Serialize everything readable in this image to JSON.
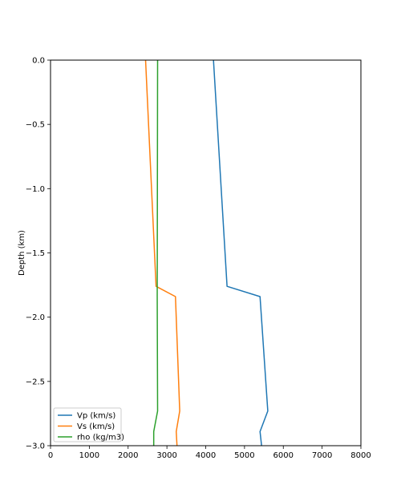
{
  "chart_data": {
    "type": "line",
    "title": "",
    "xlabel": "",
    "ylabel": "Depth (km)",
    "xlim": [
      0,
      8000
    ],
    "ylim": [
      -3.0,
      0.0
    ],
    "grid": false,
    "legend_position": "lower-left",
    "x_ticks": [
      "0",
      "1000",
      "2000",
      "3000",
      "4000",
      "5000",
      "6000",
      "7000",
      "8000"
    ],
    "y_ticks": [
      "0.0",
      "−0.5",
      "−1.0",
      "−1.5",
      "−2.0",
      "−2.5",
      "−3.0"
    ],
    "series": [
      {
        "name": "Vp (km/s)",
        "color": "#1f77b4",
        "points": [
          {
            "x": 4200,
            "y": 0.0
          },
          {
            "x": 4550,
            "y": -1.76
          },
          {
            "x": 5400,
            "y": -1.84
          },
          {
            "x": 5600,
            "y": -2.73
          },
          {
            "x": 5400,
            "y": -2.89
          },
          {
            "x": 5440,
            "y": -3.0
          }
        ]
      },
      {
        "name": "Vs (km/s)",
        "color": "#ff7f0e",
        "points": [
          {
            "x": 2450,
            "y": 0.0
          },
          {
            "x": 2720,
            "y": -1.76
          },
          {
            "x": 3220,
            "y": -1.84
          },
          {
            "x": 3330,
            "y": -2.73
          },
          {
            "x": 3240,
            "y": -2.89
          },
          {
            "x": 3260,
            "y": -3.0
          }
        ]
      },
      {
        "name": "rho (kg/m3)",
        "color": "#2ca02c",
        "points": [
          {
            "x": 2760,
            "y": 0.0
          },
          {
            "x": 2750,
            "y": -1.84
          },
          {
            "x": 2760,
            "y": -2.73
          },
          {
            "x": 2660,
            "y": -2.89
          },
          {
            "x": 2660,
            "y": -3.0
          }
        ]
      }
    ]
  }
}
